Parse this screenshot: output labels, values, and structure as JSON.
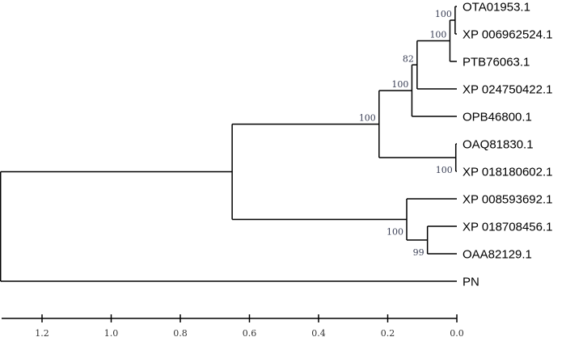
{
  "tree": {
    "depth": 1.32,
    "children": [
      {
        "depth": 0.65,
        "children": [
          {
            "depth": 0.225,
            "support": "100",
            "children": [
              {
                "depth": 0.13,
                "support": "100",
                "children": [
                  {
                    "depth": 0.115,
                    "support": "82",
                    "children": [
                      {
                        "depth": 0.02,
                        "support": "100",
                        "children": [
                          {
                            "depth": 0.005,
                            "support": "100",
                            "children": [
                              {
                                "label": "OTA01953.1"
                              },
                              {
                                "label": "XP 006962524.1"
                              }
                            ]
                          },
                          {
                            "label": "PTB76063.1"
                          }
                        ]
                      },
                      {
                        "label": "XP 024750422.1"
                      }
                    ]
                  },
                  {
                    "label": "OPB46800.1"
                  }
                ]
              },
              {
                "depth": 0.003,
                "support": "100",
                "support_pos": "below",
                "children": [
                  {
                    "label": "OAQ81830.1"
                  },
                  {
                    "label": "XP 018180602.1"
                  }
                ]
              }
            ]
          },
          {
            "depth": 0.145,
            "support": "100",
            "support_pos": "below",
            "children": [
              {
                "label": "XP 008593692.1"
              },
              {
                "depth": 0.085,
                "support": "99",
                "support_pos": "below",
                "children": [
                  {
                    "label": "XP 018708456.1"
                  },
                  {
                    "label": "OAA82129.1"
                  }
                ]
              }
            ]
          }
        ]
      },
      {
        "label": "PN"
      }
    ]
  },
  "scale_axis": {
    "ticks": [
      "1.2",
      "1.0",
      "0.8",
      "0.6",
      "0.4",
      "0.2",
      "0.0"
    ],
    "tick_values": [
      1.2,
      1.0,
      0.8,
      0.6,
      0.4,
      0.2,
      0.0
    ],
    "range": [
      1.32,
      0.0
    ]
  }
}
